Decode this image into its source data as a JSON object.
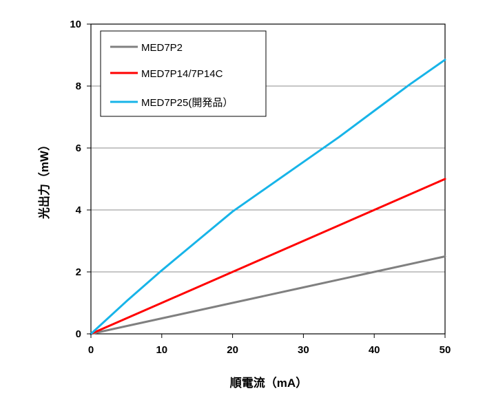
{
  "chart_data": {
    "type": "line",
    "title": "",
    "xlabel": "順電流（mA）",
    "ylabel": "光出力（mW）",
    "xlim": [
      0,
      50
    ],
    "ylim": [
      0,
      10
    ],
    "x_ticks": [
      "0",
      "10",
      "20",
      "30",
      "40",
      "50"
    ],
    "y_ticks": [
      "0",
      "2",
      "4",
      "6",
      "8",
      "10"
    ],
    "grid": "horizontal",
    "legend_position": "top-left",
    "series": [
      {
        "name": "MED7P2",
        "color": "#808080",
        "x": [
          0,
          10,
          20,
          30,
          40,
          50
        ],
        "y": [
          0,
          0.5,
          1.0,
          1.5,
          2.0,
          2.5
        ]
      },
      {
        "name": "MED7P14/7P14C",
        "color": "#ff0000",
        "x": [
          0,
          10,
          20,
          30,
          40,
          50
        ],
        "y": [
          0,
          1.0,
          2.0,
          3.0,
          4.0,
          5.0
        ]
      },
      {
        "name": "MED7P25(開発品）",
        "color": "#17b4e8",
        "x": [
          0,
          5,
          10,
          15,
          20,
          25,
          30,
          35,
          40,
          45,
          50
        ],
        "y": [
          0,
          1.05,
          2.05,
          3.0,
          3.95,
          4.75,
          5.55,
          6.35,
          7.2,
          8.05,
          8.85
        ]
      }
    ]
  }
}
